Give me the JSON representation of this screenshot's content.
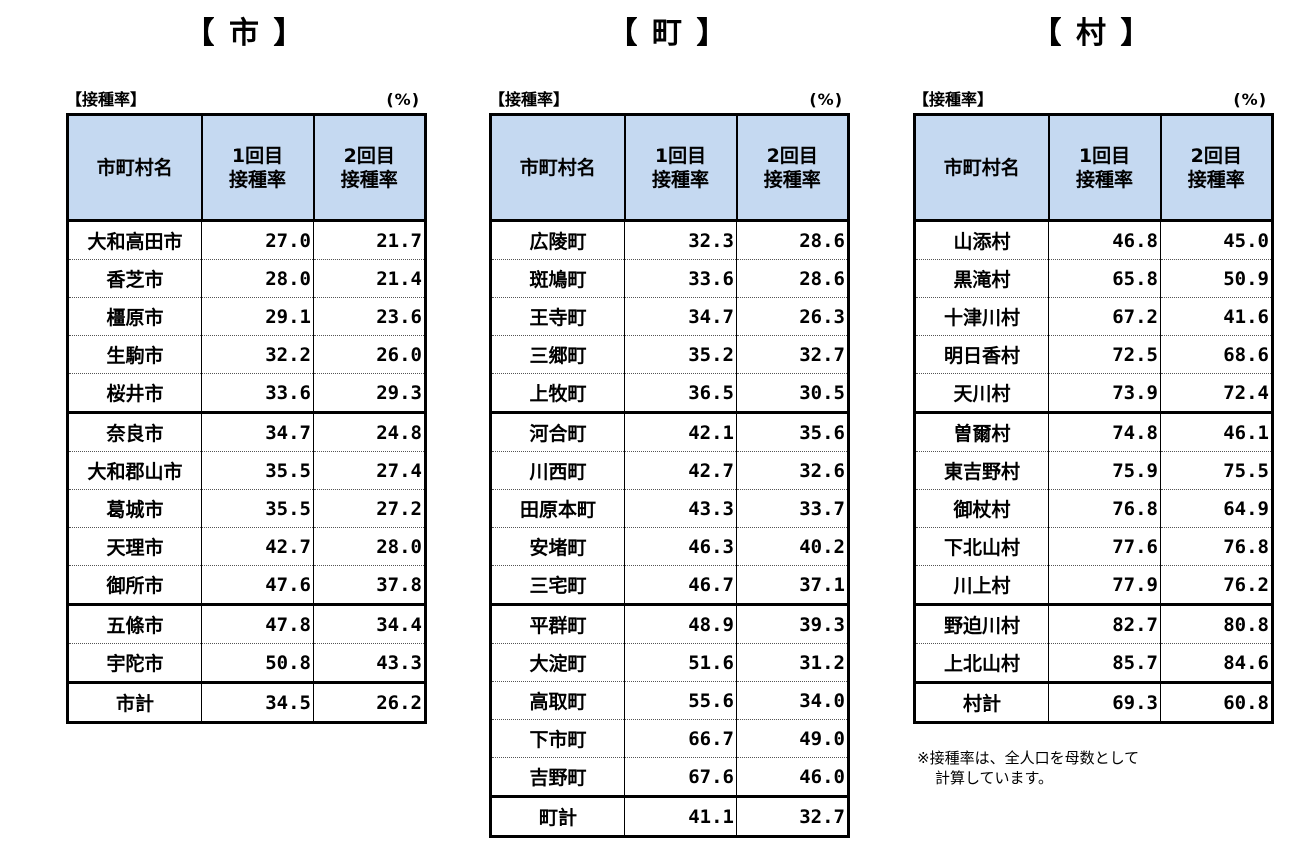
{
  "panels": [
    {
      "title": "【 市 】",
      "caption": "【接種率】",
      "unit": "(%)",
      "headers": {
        "name": "市町村名",
        "first": "1回目\n接種率",
        "second": "2回目\n接種率"
      },
      "rows": [
        {
          "name": "大和高田市",
          "first": "27.0",
          "second": "21.7"
        },
        {
          "name": "香芝市",
          "first": "28.0",
          "second": "21.4"
        },
        {
          "name": "橿原市",
          "first": "29.1",
          "second": "23.6"
        },
        {
          "name": "生駒市",
          "first": "32.2",
          "second": "26.0"
        },
        {
          "name": "桜井市",
          "first": "33.6",
          "second": "29.3"
        },
        {
          "name": "奈良市",
          "first": "34.7",
          "second": "24.8"
        },
        {
          "name": "大和郡山市",
          "first": "35.5",
          "second": "27.4"
        },
        {
          "name": "葛城市",
          "first": "35.5",
          "second": "27.2"
        },
        {
          "name": "天理市",
          "first": "42.7",
          "second": "28.0"
        },
        {
          "name": "御所市",
          "first": "47.6",
          "second": "37.8"
        },
        {
          "name": "五條市",
          "first": "47.8",
          "second": "34.4"
        },
        {
          "name": "宇陀市",
          "first": "50.8",
          "second": "43.3"
        }
      ],
      "total": {
        "name": "市計",
        "first": "34.5",
        "second": "26.2"
      }
    },
    {
      "title": "【 町 】",
      "caption": "【接種率】",
      "unit": "(%)",
      "headers": {
        "name": "市町村名",
        "first": "1回目\n接種率",
        "second": "2回目\n接種率"
      },
      "rows": [
        {
          "name": "広陵町",
          "first": "32.3",
          "second": "28.6"
        },
        {
          "name": "斑鳩町",
          "first": "33.6",
          "second": "28.6"
        },
        {
          "name": "王寺町",
          "first": "34.7",
          "second": "26.3"
        },
        {
          "name": "三郷町",
          "first": "35.2",
          "second": "32.7"
        },
        {
          "name": "上牧町",
          "first": "36.5",
          "second": "30.5"
        },
        {
          "name": "河合町",
          "first": "42.1",
          "second": "35.6"
        },
        {
          "name": "川西町",
          "first": "42.7",
          "second": "32.6"
        },
        {
          "name": "田原本町",
          "first": "43.3",
          "second": "33.7"
        },
        {
          "name": "安堵町",
          "first": "46.3",
          "second": "40.2"
        },
        {
          "name": "三宅町",
          "first": "46.7",
          "second": "37.1"
        },
        {
          "name": "平群町",
          "first": "48.9",
          "second": "39.3"
        },
        {
          "name": "大淀町",
          "first": "51.6",
          "second": "31.2"
        },
        {
          "name": "高取町",
          "first": "55.6",
          "second": "34.0"
        },
        {
          "name": "下市町",
          "first": "66.7",
          "second": "49.0"
        },
        {
          "name": "吉野町",
          "first": "67.6",
          "second": "46.0"
        }
      ],
      "total": {
        "name": "町計",
        "first": "41.1",
        "second": "32.7"
      }
    },
    {
      "title": "【 村 】",
      "caption": "【接種率】",
      "unit": "(%)",
      "headers": {
        "name": "市町村名",
        "first": "1回目\n接種率",
        "second": "2回目\n接種率"
      },
      "rows": [
        {
          "name": "山添村",
          "first": "46.8",
          "second": "45.0"
        },
        {
          "name": "黒滝村",
          "first": "65.8",
          "second": "50.9"
        },
        {
          "name": "十津川村",
          "first": "67.2",
          "second": "41.6"
        },
        {
          "name": "明日香村",
          "first": "72.5",
          "second": "68.6"
        },
        {
          "name": "天川村",
          "first": "73.9",
          "second": "72.4"
        },
        {
          "name": "曽爾村",
          "first": "74.8",
          "second": "46.1"
        },
        {
          "name": "東吉野村",
          "first": "75.9",
          "second": "75.5"
        },
        {
          "name": "御杖村",
          "first": "76.8",
          "second": "64.9"
        },
        {
          "name": "下北山村",
          "first": "77.6",
          "second": "76.8"
        },
        {
          "name": "川上村",
          "first": "77.9",
          "second": "76.2"
        },
        {
          "name": "野迫川村",
          "first": "82.7",
          "second": "80.8"
        },
        {
          "name": "上北山村",
          "first": "85.7",
          "second": "84.6"
        }
      ],
      "total": {
        "name": "村計",
        "first": "69.3",
        "second": "60.8"
      }
    }
  ],
  "footnote": {
    "line1": "※接種率は、全人口を母数として",
    "line2": "計算しています。"
  }
}
